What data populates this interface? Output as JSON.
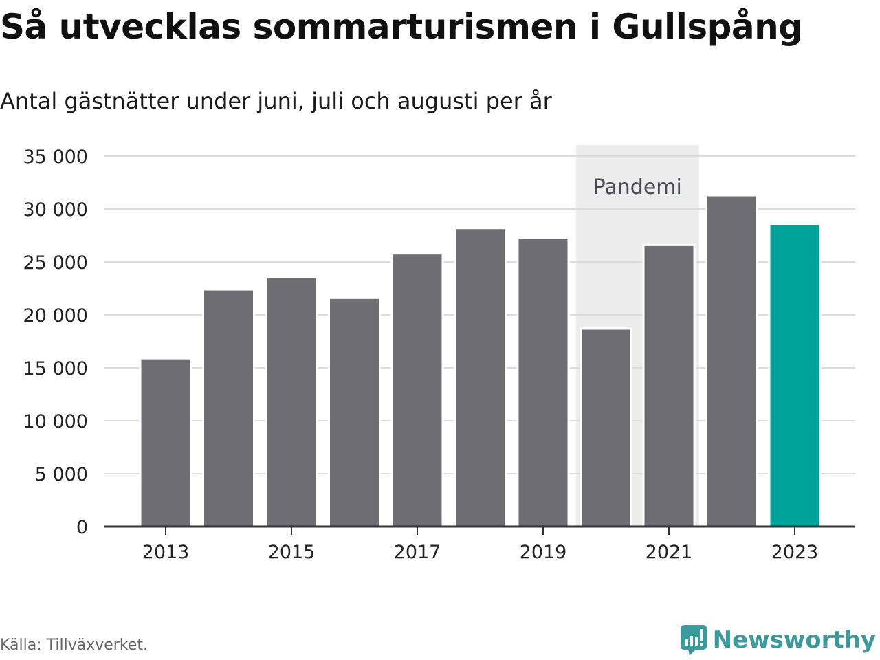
{
  "title": "Så utvecklas sommarturismen i Gullspång",
  "subtitle": "Antal gästnätter under juni, juli och augusti per år",
  "source": "Källa: Tillväxverket.",
  "brand": {
    "name": "Newsworthy",
    "icon": "newsworthy-logo-icon",
    "color": "#3a9a9c"
  },
  "chart_data": {
    "type": "bar",
    "categories": [
      "2013",
      "2014",
      "2015",
      "2016",
      "2017",
      "2018",
      "2019",
      "2020",
      "2021",
      "2022",
      "2023"
    ],
    "values": [
      15900,
      22400,
      23600,
      21600,
      25800,
      28200,
      27300,
      18700,
      26600,
      31300,
      28600
    ],
    "x_tick_labels": [
      "2013",
      "2015",
      "2017",
      "2019",
      "2021",
      "2023"
    ],
    "y_ticks": [
      0,
      5000,
      10000,
      15000,
      20000,
      25000,
      30000,
      35000
    ],
    "y_tick_labels": [
      "0",
      "5 000",
      "10 000",
      "15 000",
      "20 000",
      "25 000",
      "30 000",
      "35 000"
    ],
    "ylim": [
      0,
      35000
    ],
    "grid": true,
    "bar_color": "#6e6d74",
    "highlight_color": "#00a39a",
    "highlight_category": "2023",
    "shaded_region": {
      "from": "2020",
      "to": "2021",
      "label": "Pandemi",
      "color": "#ececec"
    }
  }
}
